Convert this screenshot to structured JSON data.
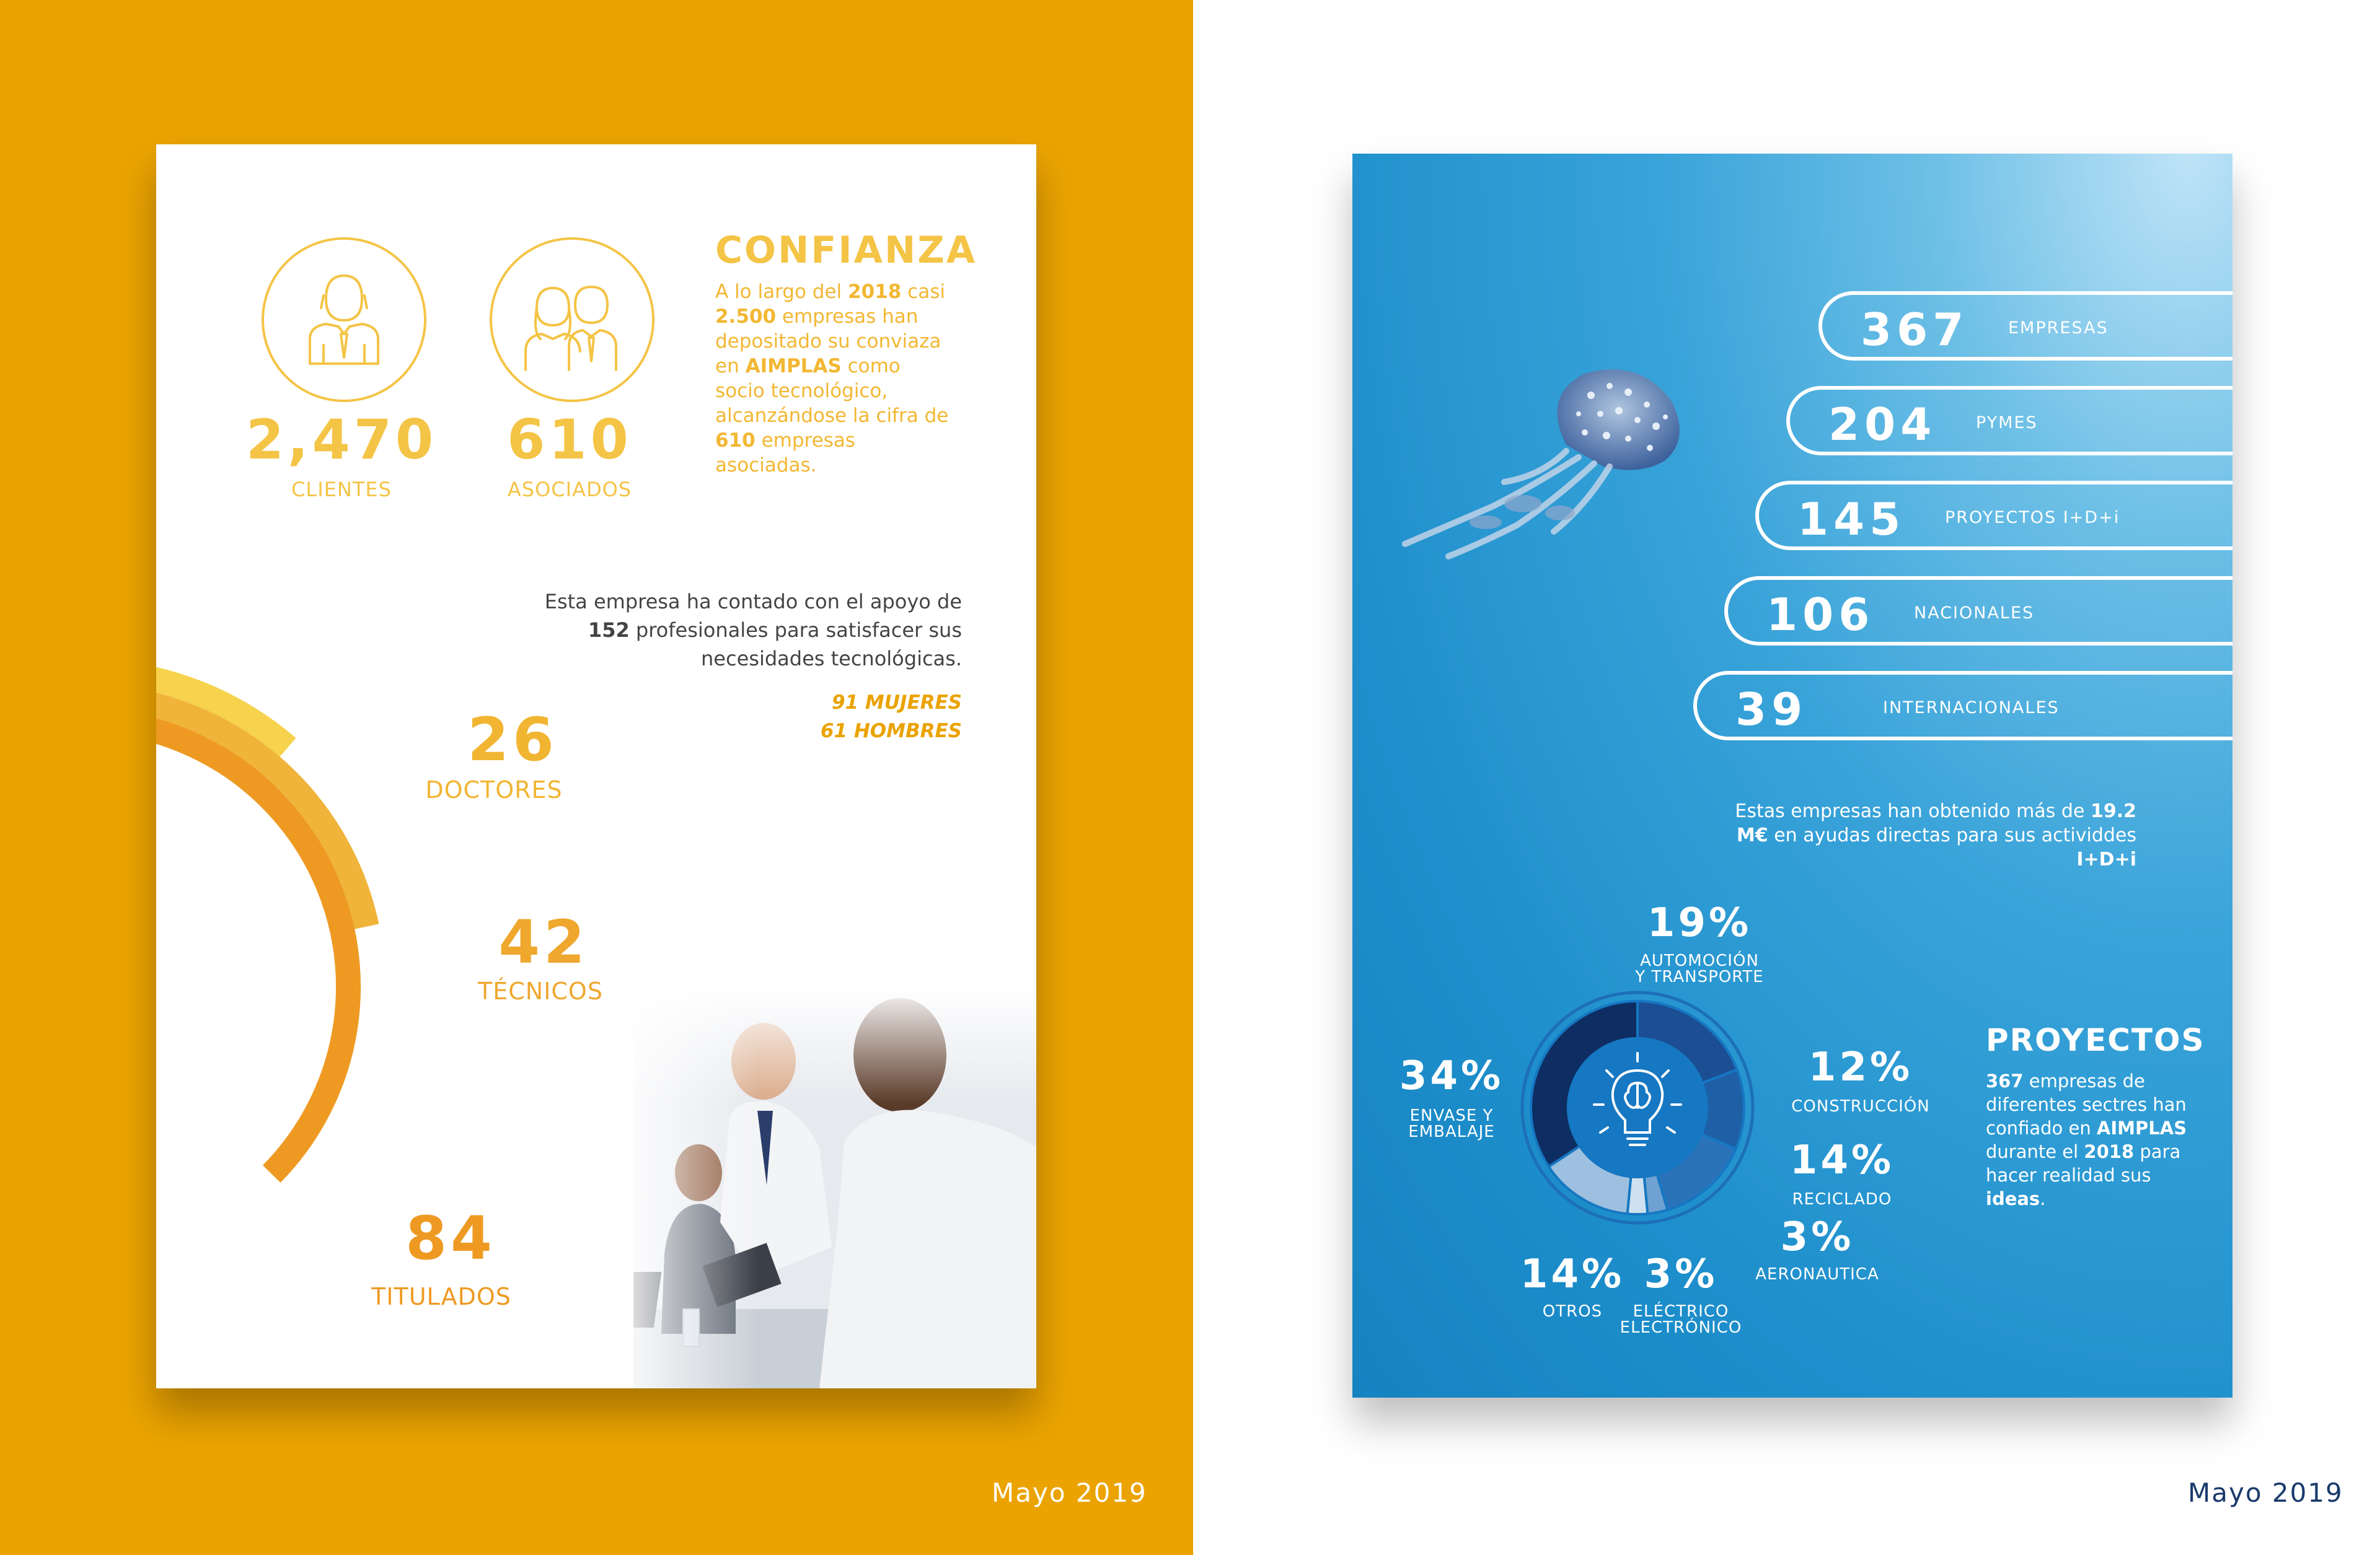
{
  "footer_date": "Mayo 2019",
  "colors": {
    "left_background": "#EAA300",
    "yellow": "#F4C446",
    "orange": "#EE9A22",
    "blue_dark": "#0F3B7A"
  },
  "left_card": {
    "stats": [
      {
        "value": "2,470",
        "label": "CLIENTES",
        "icon": "businessman-icon"
      },
      {
        "value": "610",
        "label": "ASOCIADOS",
        "icon": "business-team-icon"
      }
    ],
    "confianza": {
      "title": "CONFIANZA",
      "t1": "A lo largo del ",
      "b1": "2018",
      "t2": " casi ",
      "b2": "2.500",
      "t3": " empresas han depositado su conviaza en ",
      "b3": "AIMPLAS",
      "t4": " como socio tecnológico, alcanzándose la cifra de ",
      "b4": "610",
      "t5": " empresas asociadas."
    },
    "apoyo": {
      "t1": "Esta empresa ha contado con el apoyo de ",
      "b1": "152",
      "t2": " profesionales para satisfacer sus necesidades tecnológicas."
    },
    "genero": {
      "mujeres": "91 MUJERES",
      "hombres": "61 HOMBRES"
    },
    "arcs": [
      {
        "value": "26",
        "label": "DOCTORES"
      },
      {
        "value": "42",
        "label": "TÉCNICOS"
      },
      {
        "value": "84",
        "label": "TITULADOS"
      }
    ]
  },
  "right_card": {
    "pills": [
      {
        "value": "367",
        "label": "EMPRESAS"
      },
      {
        "value": "204",
        "label": "PYMES"
      },
      {
        "value": "145",
        "label": "PROYECTOS I+D+i"
      },
      {
        "value": "106",
        "label": "NACIONALES"
      },
      {
        "value": "39",
        "label": "INTERNACIONALES"
      }
    ],
    "ayudas": {
      "t1": "Estas empresas han obtenido más de ",
      "b1": "19.2 M€",
      "t2": " en ayudas directas para sus actividdes ",
      "b2": "I+D+i"
    },
    "sectors": [
      {
        "pct": "19%",
        "label1": "AUTOMOCIÓN",
        "label2": "Y TRANSPORTE",
        "share": 19
      },
      {
        "pct": "12%",
        "label1": "CONSTRUCCIÓN",
        "label2": "",
        "share": 12
      },
      {
        "pct": "14%",
        "label1": "RECICLADO",
        "label2": "",
        "share": 14
      },
      {
        "pct": "3%",
        "label1": "AERONAUTICA",
        "label2": "",
        "share": 3
      },
      {
        "pct": "3%",
        "label1": "ELÉCTRICO",
        "label2": "ELECTRÓNICO",
        "share": 3
      },
      {
        "pct": "14%",
        "label1": "OTROS",
        "label2": "",
        "share": 14
      },
      {
        "pct": "34%",
        "label1": "ENVASE Y",
        "label2": "EMBALAJE",
        "share": 34
      }
    ],
    "proyectos": {
      "title": "PROYECTOS",
      "b1": "367",
      "t1": " empresas de diferentes sectres han confiado en ",
      "b2": "AIMPLAS",
      "t2": " durante el ",
      "b3": "2018",
      "t3": " para hacer realidad sus ",
      "b4": "ideas",
      "t4": "."
    }
  }
}
